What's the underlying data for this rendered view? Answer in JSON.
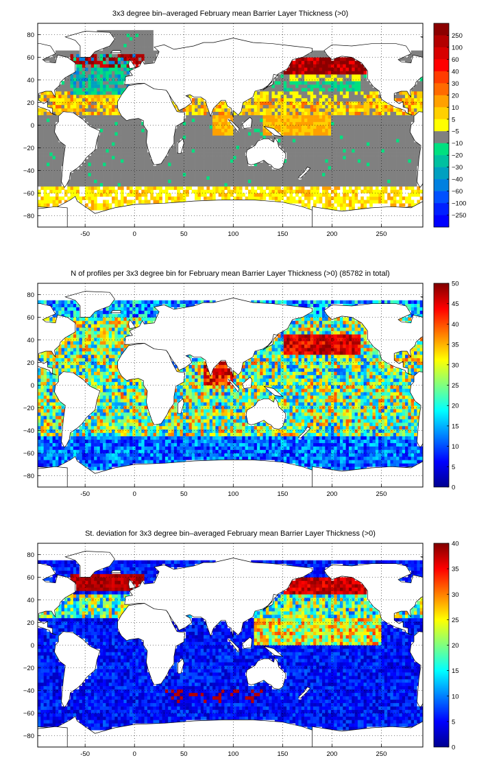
{
  "chart_data": [
    {
      "type": "heatmap",
      "title": "3x3 degree bin–averaged February mean Barrier Layer Thickness (>0)",
      "x_ticks": [
        "-50",
        "0",
        "50",
        "100",
        "150",
        "200",
        "250"
      ],
      "y_ticks": [
        "80",
        "60",
        "40",
        "20",
        "0",
        "−20",
        "−40",
        "−60",
        "−80"
      ],
      "xlim": [
        -98,
        292
      ],
      "ylim": [
        -90,
        90
      ],
      "grid": true,
      "colorbar": {
        "type": "categorical",
        "labels": [
          "250",
          "100",
          "60",
          "40",
          "30",
          "20",
          "10",
          "5",
          "−5",
          "−10",
          "−20",
          "−30",
          "−40",
          "−60",
          "−100",
          "−250"
        ],
        "colors": [
          "#8b0000",
          "#b30000",
          "#d80000",
          "#ff0000",
          "#ff3c00",
          "#ff6a00",
          "#ffa000",
          "#ffd000",
          "#ffff00",
          "#808080",
          "#00e080",
          "#00c0a0",
          "#00a0c0",
          "#0080e0",
          "#0050ff",
          "#0020ff",
          "#0000ff"
        ],
        "tick_values": [
          250,
          100,
          60,
          40,
          30,
          20,
          10,
          5,
          -5,
          -10,
          -20,
          -30,
          -40,
          -60,
          -100,
          -250
        ]
      }
    },
    {
      "type": "heatmap",
      "title": "N of profiles per 3x3 degree bin for February mean Barrier Layer Thickness (>0) (85782 in total)",
      "x_ticks": [
        "-50",
        "0",
        "50",
        "100",
        "150",
        "200",
        "250"
      ],
      "y_ticks": [
        "80",
        "60",
        "40",
        "20",
        "0",
        "−20",
        "−40",
        "−60",
        "−80"
      ],
      "xlim": [
        -98,
        292
      ],
      "ylim": [
        -90,
        90
      ],
      "grid": true,
      "colorbar": {
        "type": "continuous",
        "colormap": "jet",
        "range": [
          0,
          50
        ],
        "ticks": [
          "50",
          "45",
          "40",
          "35",
          "30",
          "25",
          "20",
          "15",
          "10",
          "5",
          "0"
        ]
      }
    },
    {
      "type": "heatmap",
      "title": "St. deviation for 3x3 degree bin–averaged February mean Barrier Layer Thickness (>0)",
      "x_ticks": [
        "-50",
        "0",
        "50",
        "100",
        "150",
        "200",
        "250"
      ],
      "y_ticks": [
        "80",
        "60",
        "40",
        "20",
        "0",
        "−20",
        "−40",
        "−60",
        "−80"
      ],
      "xlim": [
        -98,
        292
      ],
      "ylim": [
        -90,
        90
      ],
      "grid": true,
      "colorbar": {
        "type": "continuous",
        "colormap": "jet",
        "range": [
          0,
          40
        ],
        "ticks": [
          "40",
          "35",
          "30",
          "25",
          "20",
          "15",
          "10",
          "5",
          "0"
        ]
      }
    }
  ]
}
